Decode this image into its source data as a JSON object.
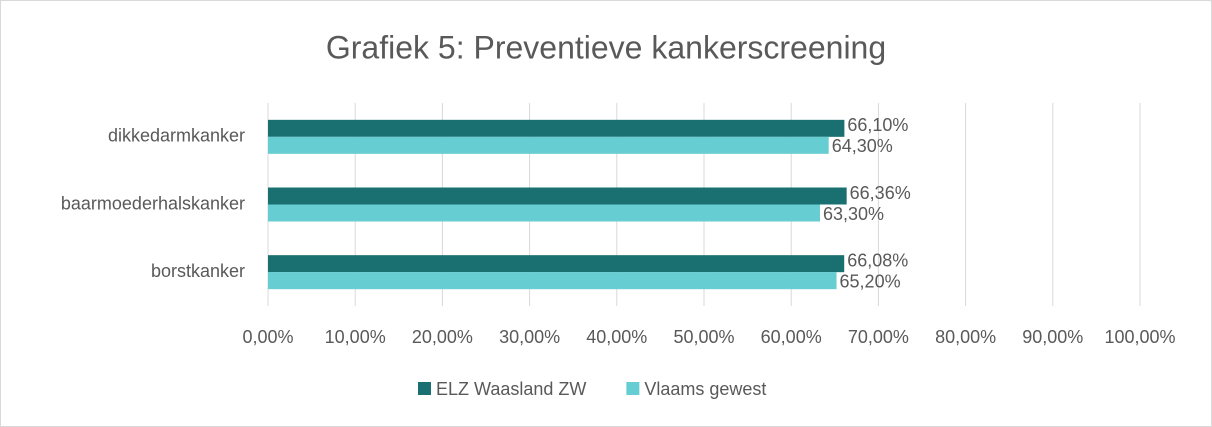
{
  "chart_data": {
    "type": "hbar",
    "title": "Grafiek 5: Preventieve kankerscreening",
    "categories": [
      "dikkedarmkanker",
      "baarmoederhalskanker",
      "borstkanker"
    ],
    "series": [
      {
        "name": "ELZ Waasland ZW",
        "color": "#1a7070",
        "values": [
          66.1,
          66.36,
          66.08
        ],
        "value_labels": [
          "66,10%",
          "66,36%",
          "66,08%"
        ]
      },
      {
        "name": "Vlaams gewest",
        "color": "#66cdd2",
        "values": [
          64.3,
          63.3,
          65.2
        ],
        "value_labels": [
          "64,30%",
          "63,30%",
          "65,20%"
        ]
      }
    ],
    "xlim": [
      0,
      100
    ],
    "xticks": [
      {
        "value": 0,
        "label": "0,00%"
      },
      {
        "value": 10,
        "label": "10,00%"
      },
      {
        "value": 20,
        "label": "20,00%"
      },
      {
        "value": 30,
        "label": "30,00%"
      },
      {
        "value": 40,
        "label": "40,00%"
      },
      {
        "value": 50,
        "label": "50,00%"
      },
      {
        "value": 60,
        "label": "60,00%"
      },
      {
        "value": 70,
        "label": "70,00%"
      },
      {
        "value": 80,
        "label": "80,00%"
      },
      {
        "value": 90,
        "label": "90,00%"
      },
      {
        "value": 100,
        "label": "100,00%"
      }
    ],
    "grid": true,
    "legend": "bottom"
  }
}
